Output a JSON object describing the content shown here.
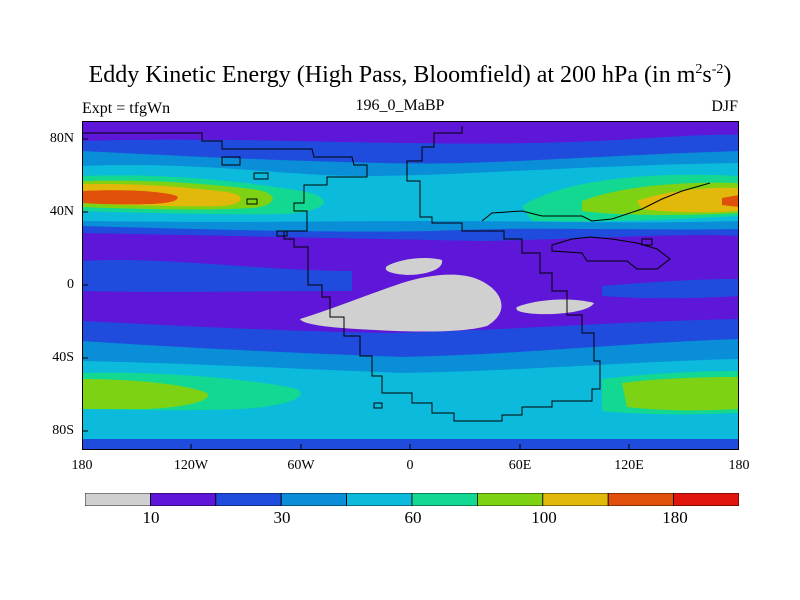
{
  "title": {
    "main": "Eddy Kinetic Energy (High Pass, Bloomfield) at 200 hPa (in m",
    "sup1": "2",
    "mid": "s",
    "sup2": "-2",
    "end": ")"
  },
  "subtitle": "196_0_MaBP",
  "left_label": "Expt = tfgWn",
  "right_label": "DJF",
  "y_ticks": [
    "80N",
    "40N",
    "0",
    "40S",
    "80S"
  ],
  "x_ticks": [
    "180",
    "120W",
    "60W",
    "0",
    "60E",
    "120E",
    "180"
  ],
  "colorbar": {
    "colors": [
      "#d0d0d0",
      "#5e16d8",
      "#1f4cdc",
      "#0a8ed8",
      "#0cbbdc",
      "#12d892",
      "#7ed214",
      "#e2b80a",
      "#e0500a",
      "#e0140c"
    ],
    "labels": [
      "10",
      "30",
      "60",
      "100",
      "180"
    ]
  }
}
